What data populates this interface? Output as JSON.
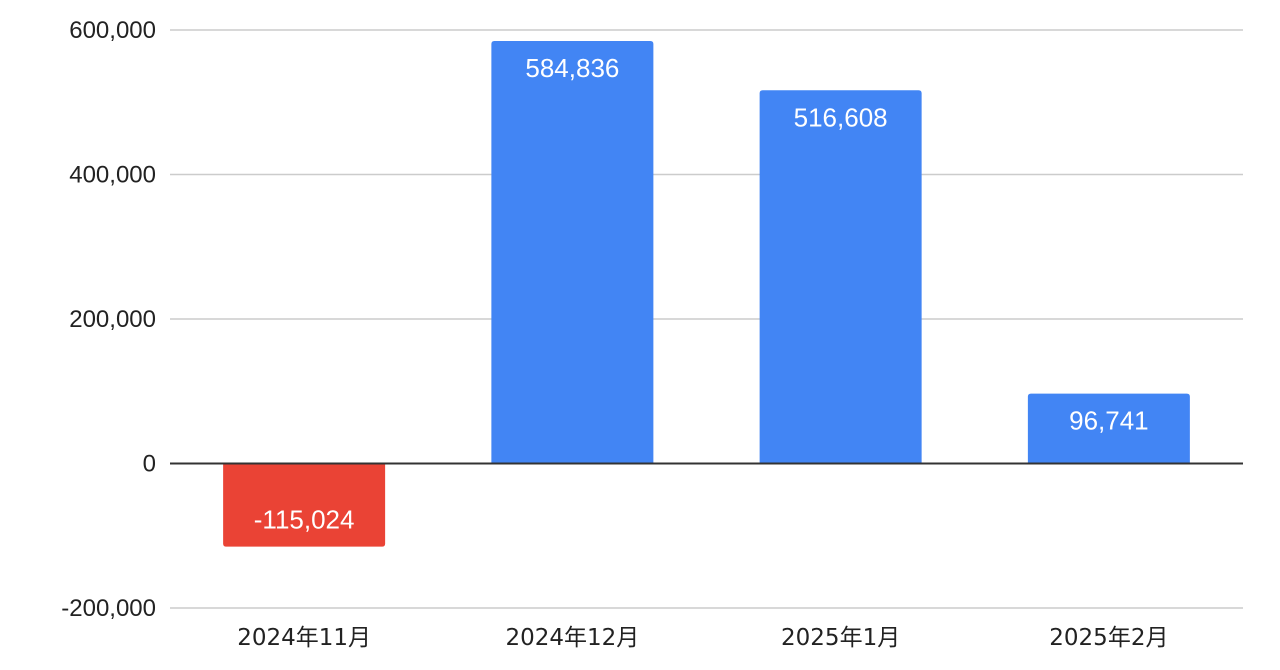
{
  "chart_data": {
    "type": "bar",
    "categories": [
      "2024年11月",
      "2024年12月",
      "2025年1月",
      "2025年2月"
    ],
    "values": [
      -115024,
      584836,
      516608,
      96741
    ],
    "data_labels": [
      "-115,024",
      "584,836",
      "516,608",
      "96,741"
    ],
    "ylim": [
      -200000,
      600000
    ],
    "y_ticks": [
      600000,
      400000,
      200000,
      0,
      -200000
    ],
    "y_tick_labels": [
      "600,000",
      "400,000",
      "200,000",
      "0",
      "-200,000"
    ],
    "grid": true,
    "legend": "none",
    "title": "",
    "xlabel": "",
    "ylabel": "",
    "colors": {
      "positive": "#4285f4",
      "negative": "#ea4335",
      "grid": "#cccccc",
      "zero_line": "#333333"
    }
  }
}
